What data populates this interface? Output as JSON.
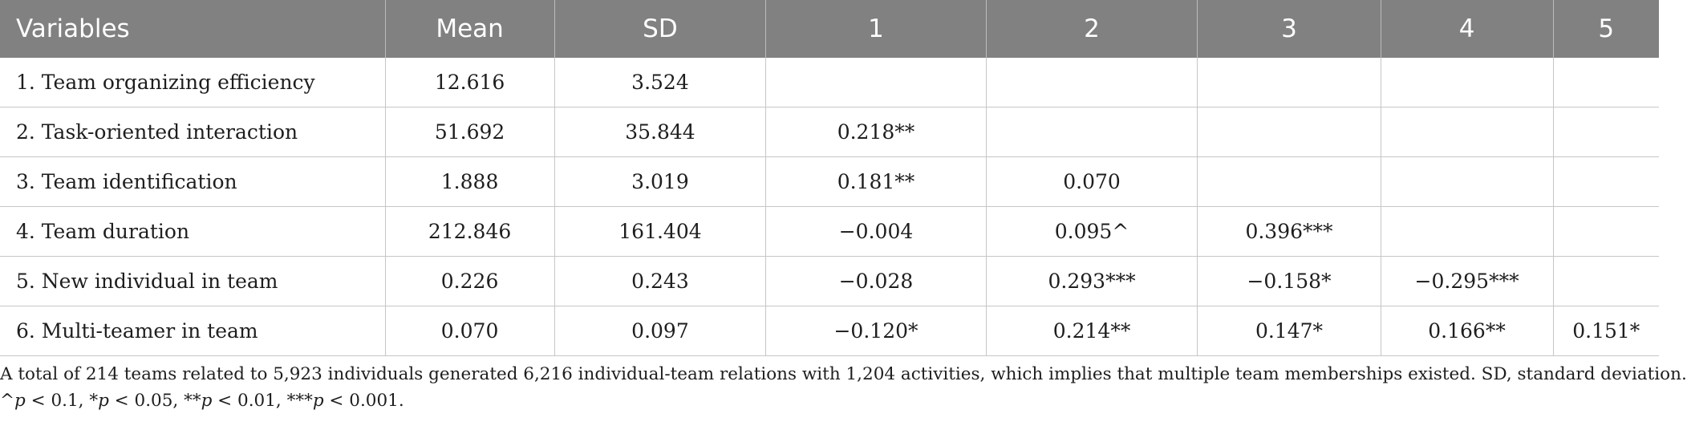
{
  "table": {
    "headers": [
      "Variables",
      "Mean",
      "SD",
      "1",
      "2",
      "3",
      "4",
      "5"
    ],
    "rows": [
      [
        "1. Team organizing efficiency",
        "12.616",
        "3.524",
        "",
        "",
        "",
        "",
        ""
      ],
      [
        "2. Task-oriented interaction",
        "51.692",
        "35.844",
        "0.218**",
        "",
        "",
        "",
        ""
      ],
      [
        "3. Team identification",
        "1.888",
        "3.019",
        "0.181**",
        "0.070",
        "",
        "",
        ""
      ],
      [
        "4. Team duration",
        "212.846",
        "161.404",
        "−0.004",
        "0.095^",
        "0.396***",
        "",
        ""
      ],
      [
        "5. New individual in team",
        "0.226",
        "0.243",
        "−0.028",
        "0.293***",
        "−0.158*",
        "−0.295***",
        ""
      ],
      [
        "6. Multi-teamer in team",
        "0.070",
        "0.097",
        "−0.120*",
        "0.214**",
        "0.147*",
        "0.166**",
        "0.151*"
      ]
    ]
  },
  "note": {
    "line1": "A total of 214 teams related to 5,923 individuals generated 6,216 individual-team relations with 1,204 activities, which implies that multiple team memberships existed. SD, standard deviation.",
    "sig": {
      "p1_pre": "^",
      "p1_var": "p",
      "p1_post": " < 0.1, ",
      "p2_pre": "*",
      "p2_var": "p",
      "p2_post": " < 0.05, ",
      "p3_pre": "**",
      "p3_var": "p",
      "p3_post": " < 0.01, ",
      "p4_pre": "***",
      "p4_var": "p",
      "p4_post": " < 0.001."
    }
  }
}
